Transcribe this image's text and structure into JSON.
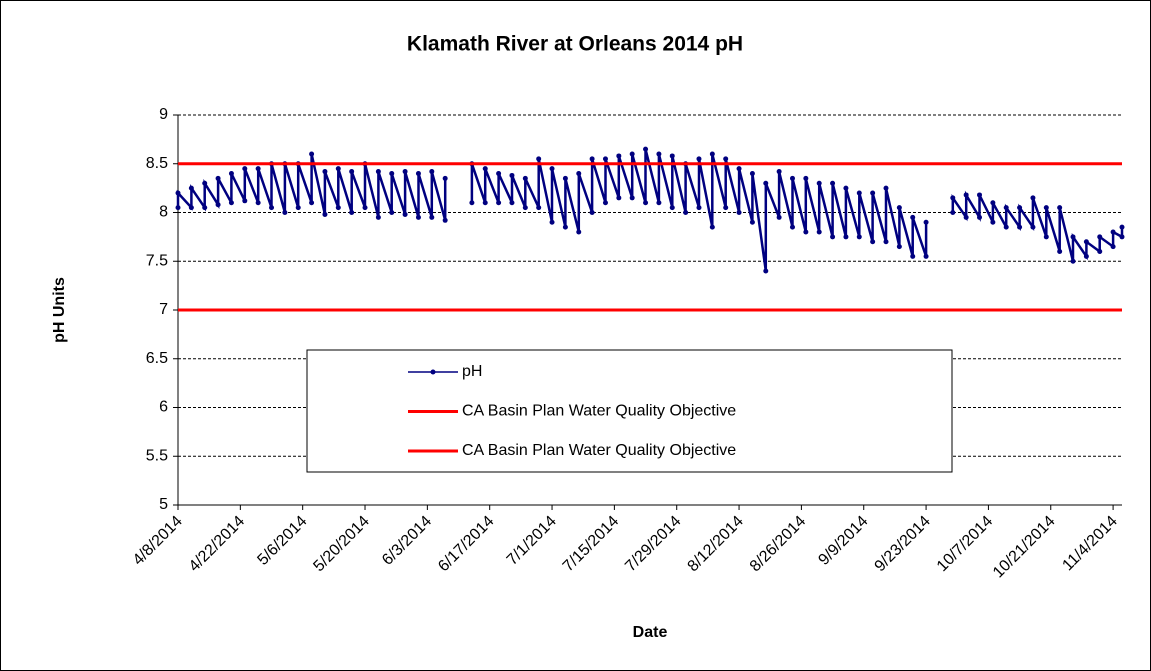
{
  "chart_data": {
    "type": "line",
    "title": "Klamath River at Orleans 2014 pH",
    "x_label": "Date",
    "y_label": "pH Units",
    "xlim": [
      "4/8/2014",
      "11/6/2014"
    ],
    "xticks": [
      "4/8/2014",
      "4/22/2014",
      "5/6/2014",
      "5/20/2014",
      "6/3/2014",
      "6/17/2014",
      "7/1/2014",
      "7/15/2014",
      "7/29/2014",
      "8/12/2014",
      "8/26/2014",
      "9/9/2014",
      "9/23/2014",
      "10/7/2014",
      "10/21/2014",
      "11/4/2014"
    ],
    "ylim": [
      5,
      9
    ],
    "yticks": [
      5,
      5.5,
      6,
      6.5,
      7,
      7.5,
      8,
      8.5,
      9
    ],
    "grid": true,
    "x": [
      "4/8/2014",
      "4/8/2014",
      "4/11/2014",
      "4/11/2014",
      "4/14/2014",
      "4/14/2014",
      "4/17/2014",
      "4/17/2014",
      "4/20/2014",
      "4/20/2014",
      "4/23/2014",
      "4/23/2014",
      "4/26/2014",
      "4/26/2014",
      "4/29/2014",
      "4/29/2014",
      "5/2/2014",
      "5/2/2014",
      "5/5/2014",
      "5/5/2014",
      "5/8/2014",
      "5/8/2014",
      "5/11/2014",
      "5/11/2014",
      "5/14/2014",
      "5/14/2014",
      "5/17/2014",
      "5/17/2014",
      "5/20/2014",
      "5/20/2014",
      "5/23/2014",
      "5/23/2014",
      "5/26/2014",
      "5/26/2014",
      "5/29/2014",
      "5/29/2014",
      "6/1/2014",
      "6/1/2014",
      "6/4/2014",
      "6/4/2014",
      "6/7/2014",
      "6/7/2014",
      "6/10/2014",
      "6/13/2014",
      "6/13/2014",
      "6/16/2014",
      "6/16/2014",
      "6/19/2014",
      "6/19/2014",
      "6/22/2014",
      "6/22/2014",
      "6/25/2014",
      "6/25/2014",
      "6/28/2014",
      "6/28/2014",
      "7/1/2014",
      "7/1/2014",
      "7/4/2014",
      "7/4/2014",
      "7/7/2014",
      "7/7/2014",
      "7/10/2014",
      "7/10/2014",
      "7/13/2014",
      "7/13/2014",
      "7/16/2014",
      "7/16/2014",
      "7/19/2014",
      "7/19/2014",
      "7/22/2014",
      "7/22/2014",
      "7/25/2014",
      "7/25/2014",
      "7/28/2014",
      "7/28/2014",
      "7/31/2014",
      "7/31/2014",
      "8/3/2014",
      "8/3/2014",
      "8/6/2014",
      "8/6/2014",
      "8/9/2014",
      "8/9/2014",
      "8/12/2014",
      "8/12/2014",
      "8/15/2014",
      "8/15/2014",
      "8/18/2014",
      "8/18/2014",
      "8/21/2014",
      "8/21/2014",
      "8/24/2014",
      "8/24/2014",
      "8/27/2014",
      "8/27/2014",
      "8/30/2014",
      "8/30/2014",
      "9/2/2014",
      "9/2/2014",
      "9/5/2014",
      "9/5/2014",
      "9/8/2014",
      "9/8/2014",
      "9/11/2014",
      "9/11/2014",
      "9/14/2014",
      "9/14/2014",
      "9/17/2014",
      "9/17/2014",
      "9/20/2014",
      "9/20/2014",
      "9/23/2014",
      "9/23/2014",
      "9/26/2014",
      "9/29/2014",
      "9/29/2014",
      "10/2/2014",
      "10/2/2014",
      "10/5/2014",
      "10/5/2014",
      "10/8/2014",
      "10/8/2014",
      "10/11/2014",
      "10/11/2014",
      "10/14/2014",
      "10/14/2014",
      "10/17/2014",
      "10/17/2014",
      "10/20/2014",
      "10/20/2014",
      "10/23/2014",
      "10/23/2014",
      "10/26/2014",
      "10/26/2014",
      "10/29/2014",
      "10/29/2014",
      "11/1/2014",
      "11/1/2014",
      "11/4/2014",
      "11/4/2014",
      "11/6/2014",
      "11/6/2014"
    ],
    "series": [
      {
        "name": "pH",
        "color": "#000080",
        "values": [
          8.05,
          8.2,
          8.05,
          8.25,
          8.05,
          8.3,
          8.08,
          8.35,
          8.1,
          8.4,
          8.12,
          8.45,
          8.1,
          8.45,
          8.05,
          8.5,
          8.0,
          8.5,
          8.05,
          8.5,
          8.1,
          8.6,
          7.98,
          8.42,
          8.05,
          8.45,
          8.0,
          8.42,
          8.05,
          8.5,
          7.95,
          8.42,
          8.0,
          8.4,
          7.98,
          8.42,
          7.95,
          8.4,
          7.95,
          8.42,
          7.92,
          8.35,
          null,
          8.1,
          8.5,
          8.1,
          8.45,
          8.1,
          8.4,
          8.1,
          8.38,
          8.05,
          8.35,
          8.05,
          8.55,
          7.9,
          8.45,
          7.85,
          8.35,
          7.8,
          8.4,
          8.0,
          8.55,
          8.1,
          8.55,
          8.15,
          8.58,
          8.15,
          8.6,
          8.1,
          8.65,
          8.1,
          8.6,
          8.05,
          8.58,
          8.0,
          8.5,
          8.05,
          8.55,
          7.85,
          8.6,
          8.05,
          8.55,
          8.0,
          8.45,
          7.9,
          8.4,
          7.4,
          8.3,
          7.95,
          8.42,
          7.85,
          8.35,
          7.8,
          8.35,
          7.8,
          8.3,
          7.75,
          8.3,
          7.75,
          8.25,
          7.75,
          8.2,
          7.7,
          8.2,
          7.7,
          8.25,
          7.65,
          8.05,
          7.55,
          7.95,
          7.55,
          7.9,
          null,
          8.0,
          8.15,
          7.95,
          8.18,
          7.95,
          8.18,
          7.9,
          8.1,
          7.85,
          8.05,
          7.85,
          8.05,
          7.85,
          8.15,
          7.75,
          8.05,
          7.6,
          8.05,
          7.5,
          7.75,
          7.55,
          7.7,
          7.6,
          7.75,
          7.65,
          7.8,
          7.75,
          7.85
        ]
      },
      {
        "name": "CA Basin Plan Water Quality Objective",
        "color": "#ff0000",
        "value": 8.5
      },
      {
        "name": "CA Basin Plan Water Quality Objective",
        "color": "#ff0000",
        "value": 7
      }
    ]
  }
}
